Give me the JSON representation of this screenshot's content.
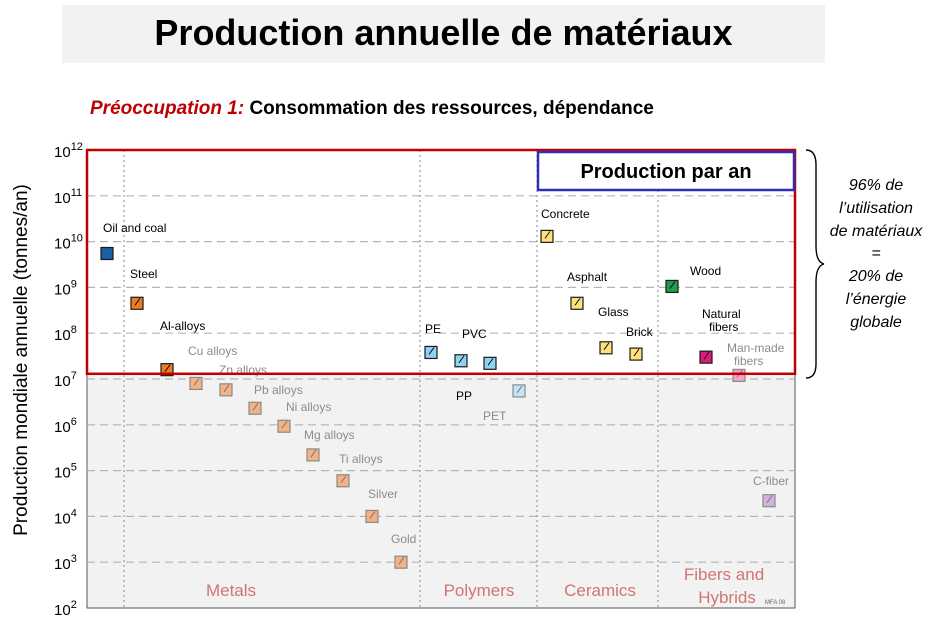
{
  "header": {
    "title": "Production annuelle de matériaux",
    "concern_label": "Préoccupation 1:",
    "concern_text": "Consommation des ressources, dépendance",
    "highlight_box": "Production par an"
  },
  "side_note": {
    "lines": [
      "96%  de",
      "l’utilisation",
      "de matériaux",
      "=",
      "20% de",
      "l’énergie",
      "globale"
    ]
  },
  "watermark": "MFA 08",
  "colors": {
    "highlight_border": "#c00000",
    "production_box_border": "#2e2eb8",
    "category_label": "#d37474",
    "lower_region_bg": "#f2f2f2"
  },
  "chart_data": {
    "type": "scatter",
    "ylabel": "Production mondiale annuelle (tonnes/an)",
    "yscale": "log",
    "ylim": [
      100,
      1000000000000
    ],
    "yticks": [
      {
        "value": 100,
        "base": "10",
        "exp": "2"
      },
      {
        "value": 1000,
        "base": "10",
        "exp": "3"
      },
      {
        "value": 10000,
        "base": "10",
        "exp": "4"
      },
      {
        "value": 100000,
        "base": "10",
        "exp": "5"
      },
      {
        "value": 1000000,
        "base": "10",
        "exp": "6"
      },
      {
        "value": 10000000,
        "base": "10",
        "exp": "7"
      },
      {
        "value": 100000000,
        "base": "10",
        "exp": "8"
      },
      {
        "value": 1000000000,
        "base": "10",
        "exp": "9"
      },
      {
        "value": 10000000000,
        "base": "10",
        "exp": "10"
      },
      {
        "value": 100000000000,
        "base": "10",
        "exp": "11"
      },
      {
        "value": 1000000000000,
        "base": "10",
        "exp": "12"
      }
    ],
    "categories": [
      "Metals",
      "Polymers",
      "Ceramics",
      "Fibers and Hybrids"
    ],
    "highlight_threshold": 13000000,
    "grid": true,
    "points": [
      {
        "label": "Oil and coal",
        "y": 5500000000,
        "category": "Metals",
        "color": "#1b5fa6"
      },
      {
        "label": "Steel",
        "y": 450000000,
        "category": "Metals",
        "color": "#ee7d22"
      },
      {
        "label": "Al-alloys",
        "y": 16000000,
        "category": "Metals",
        "color": "#ee7d22"
      },
      {
        "label": "Cu alloys",
        "y": 8000000,
        "category": "Metals",
        "color": "#f4b183"
      },
      {
        "label": "Zn alloys",
        "y": 5800000,
        "category": "Metals",
        "color": "#f4b183"
      },
      {
        "label": "Pb alloys",
        "y": 2300000,
        "category": "Metals",
        "color": "#f4b183"
      },
      {
        "label": "Ni alloys",
        "y": 930000,
        "category": "Metals",
        "color": "#f4b183"
      },
      {
        "label": "Mg alloys",
        "y": 220000,
        "category": "Metals",
        "color": "#f4b183"
      },
      {
        "label": "Ti alloys",
        "y": 60000,
        "category": "Metals",
        "color": "#f4b183"
      },
      {
        "label": "Silver",
        "y": 10000,
        "category": "Metals",
        "color": "#f4b183"
      },
      {
        "label": "Gold",
        "y": 1000,
        "category": "Metals",
        "color": "#f4b183"
      },
      {
        "label": "PE",
        "y": 38000000,
        "category": "Polymers",
        "color": "#8fd3f4"
      },
      {
        "label": "PVC",
        "y": 25000000,
        "category": "Polymers",
        "color": "#8fd3f4"
      },
      {
        "label": "PP",
        "y": 22000000,
        "category": "Polymers",
        "color": "#8fd3f4"
      },
      {
        "label": "PET",
        "y": 5500000,
        "category": "Polymers",
        "color": "#c3e6f7"
      },
      {
        "label": "Concrete",
        "y": 13000000000,
        "category": "Ceramics",
        "color": "#ffe07a"
      },
      {
        "label": "Asphalt",
        "y": 450000000,
        "category": "Ceramics",
        "color": "#ffe07a"
      },
      {
        "label": "Glass",
        "y": 48000000,
        "category": "Ceramics",
        "color": "#ffe07a"
      },
      {
        "label": "Brick",
        "y": 35000000,
        "category": "Ceramics",
        "color": "#ffe07a"
      },
      {
        "label": "Wood",
        "y": 1050000000,
        "category": "Fibers and Hybrids",
        "color": "#1c9e4a"
      },
      {
        "label": "Natural fibers",
        "y": 30000000,
        "category": "Fibers and Hybrids",
        "color": "#e0197a"
      },
      {
        "label": "Man-made fibers",
        "y": 12000000,
        "category": "Fibers and Hybrids",
        "color": "#f3a1cb"
      },
      {
        "label": "C-fiber",
        "y": 22000,
        "category": "Fibers and Hybrids",
        "color": "#d3b3dd"
      }
    ]
  }
}
